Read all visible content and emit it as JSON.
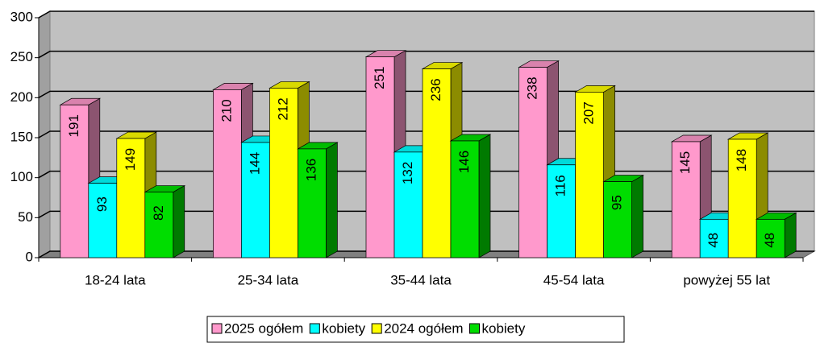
{
  "chart_data": {
    "type": "bar3d",
    "categories": [
      "18-24 lata",
      "25-34 lata",
      "35-44 lata",
      "45-54 lata",
      "powyżej 55 lat"
    ],
    "series": [
      {
        "name": "2025 ogółem",
        "color": "#ff99cc",
        "values": [
          191,
          210,
          251,
          238,
          145
        ]
      },
      {
        "name": "kobiety",
        "color": "#00ffff",
        "values": [
          93,
          144,
          132,
          116,
          48
        ]
      },
      {
        "name": "2024 ogółem",
        "color": "#ffff00",
        "values": [
          149,
          212,
          236,
          207,
          148
        ]
      },
      {
        "name": "kobiety",
        "color": "#00dd00",
        "values": [
          82,
          136,
          146,
          95,
          48
        ]
      }
    ],
    "ylim": [
      0,
      300
    ],
    "yticks": [
      0,
      50,
      100,
      150,
      200,
      250,
      300
    ],
    "grid": true
  }
}
